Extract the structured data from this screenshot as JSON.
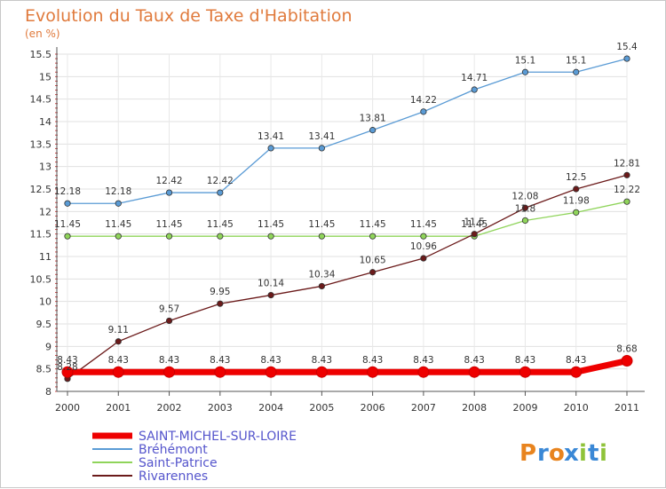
{
  "chart_data": {
    "type": "line",
    "title": "Evolution du Taux de Taxe d'Habitation",
    "unit_label": "(en %)",
    "x": [
      "2000",
      "2001",
      "2002",
      "2003",
      "2004",
      "2005",
      "2006",
      "2007",
      "2008",
      "2009",
      "2010",
      "2011"
    ],
    "ylim": [
      8,
      15.5
    ],
    "yticks": [
      "8",
      "8.5",
      "9",
      "9.5",
      "10",
      "10.5",
      "11",
      "11.5",
      "12",
      "12.5",
      "13",
      "13.5",
      "14",
      "14.5",
      "15",
      "15.5"
    ],
    "grid": true,
    "series": [
      {
        "name": "SAINT-MICHEL-SUR-LOIRE",
        "color": "#ee0000",
        "values": [
          8.43,
          8.43,
          8.43,
          8.43,
          8.43,
          8.43,
          8.43,
          8.43,
          8.43,
          8.43,
          8.43,
          8.68
        ],
        "labels": [
          "8.43",
          "8.43",
          "8.43",
          "8.43",
          "8.43",
          "8.43",
          "8.43",
          "8.43",
          "8.43",
          "8.43",
          "8.43",
          "8.68"
        ]
      },
      {
        "name": "Bréhémont",
        "color": "#5a9bd5",
        "values": [
          12.18,
          12.18,
          12.42,
          12.42,
          13.41,
          13.41,
          13.81,
          14.22,
          14.71,
          15.1,
          15.1,
          15.4
        ],
        "labels": [
          "12.18",
          "12.18",
          "12.42",
          "12.42",
          "13.41",
          "13.41",
          "13.81",
          "14.22",
          "14.71",
          "15.1",
          "15.1",
          "15.4"
        ]
      },
      {
        "name": "Saint-Patrice",
        "color": "#8fd45a",
        "values": [
          11.45,
          11.45,
          11.45,
          11.45,
          11.45,
          11.45,
          11.45,
          11.45,
          11.45,
          11.8,
          11.98,
          12.22
        ],
        "labels": [
          "11.45",
          "11.45",
          "11.45",
          "11.45",
          "11.45",
          "11.45",
          "11.45",
          "11.45",
          "11.45",
          "11.8",
          "11.98",
          "12.22"
        ]
      },
      {
        "name": "Rivarennes",
        "color": "#6b1a1a",
        "values": [
          8.28,
          9.11,
          9.57,
          9.95,
          10.14,
          10.34,
          10.65,
          10.96,
          11.5,
          12.08,
          12.5,
          12.81
        ],
        "labels": [
          "8.28",
          "9.11",
          "9.57",
          "9.95",
          "10.14",
          "10.34",
          "10.65",
          "10.96",
          "11.5",
          "12.08",
          "12.5",
          "12.81"
        ]
      }
    ],
    "legend": {
      "placement": "bottom-left",
      "items": [
        "SAINT-MICHEL-SUR-LOIRE",
        "Bréhémont",
        "Saint-Patrice",
        "Rivarennes"
      ]
    }
  },
  "watermark": {
    "text": "Proxiti",
    "letters": [
      "P",
      "r",
      "o",
      "x",
      "i",
      "t",
      "i"
    ],
    "colors": [
      "#e8841f",
      "#3a88d6",
      "#e8841f",
      "#3a88d6",
      "#8fc33a",
      "#3a88d6",
      "#8fc33a"
    ]
  }
}
